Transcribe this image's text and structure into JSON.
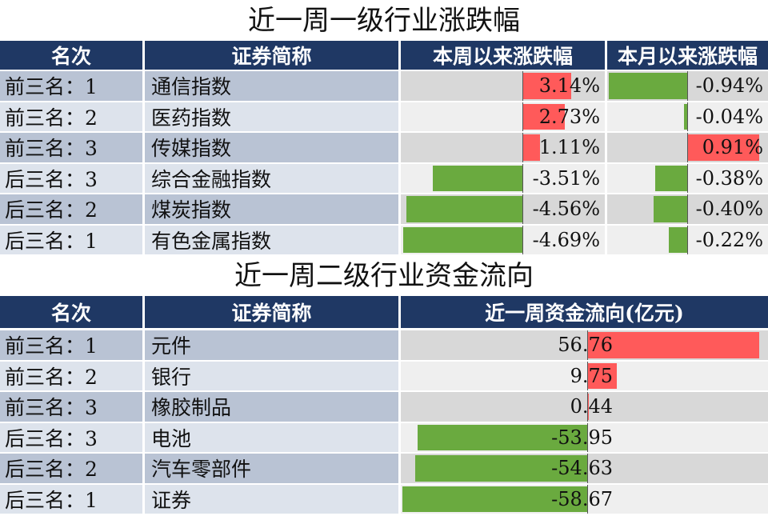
{
  "table1": {
    "title": "近一周一级行业涨跌幅",
    "headers": [
      "名次",
      "证券简称",
      "本周以来涨跌幅",
      "本月以来涨跌幅"
    ],
    "rows": [
      {
        "rank": "前三名：1",
        "name": "通信指数",
        "week": "3.14%",
        "month": "-0.94%"
      },
      {
        "rank": "前三名：2",
        "name": "医药指数",
        "week": "2.73%",
        "month": "-0.04%"
      },
      {
        "rank": "前三名：3",
        "name": "传媒指数",
        "week": "1.11%",
        "month": "0.91%"
      },
      {
        "rank": "后三名：3",
        "name": "综合金融指数",
        "week": "-3.51%",
        "month": "-0.38%"
      },
      {
        "rank": "后三名：2",
        "name": "煤炭指数",
        "week": "-4.56%",
        "month": "-0.40%"
      },
      {
        "rank": "后三名：1",
        "name": "有色金属指数",
        "week": "-4.69%",
        "month": "-0.22%"
      }
    ]
  },
  "table2": {
    "title": "近一周二级行业资金流向",
    "headers": [
      "名次",
      "证券简称",
      "近一周资金流向(亿元)"
    ],
    "rows": [
      {
        "rank": "前三名：1",
        "name": "元件",
        "flow": "56.76"
      },
      {
        "rank": "前三名：2",
        "name": "银行",
        "flow": "9.75"
      },
      {
        "rank": "前三名：3",
        "name": "橡胶制品",
        "flow": "0.44"
      },
      {
        "rank": "后三名：3",
        "name": "电池",
        "flow": "-53.95"
      },
      {
        "rank": "后三名：2",
        "name": "汽车零部件",
        "flow": "-54.63"
      },
      {
        "rank": "后三名：1",
        "name": "证券",
        "flow": "-58.67"
      }
    ]
  },
  "colors": {
    "header": "#1f3864",
    "positive": "#ff5a5a",
    "negative": "#6aaa3f"
  }
}
